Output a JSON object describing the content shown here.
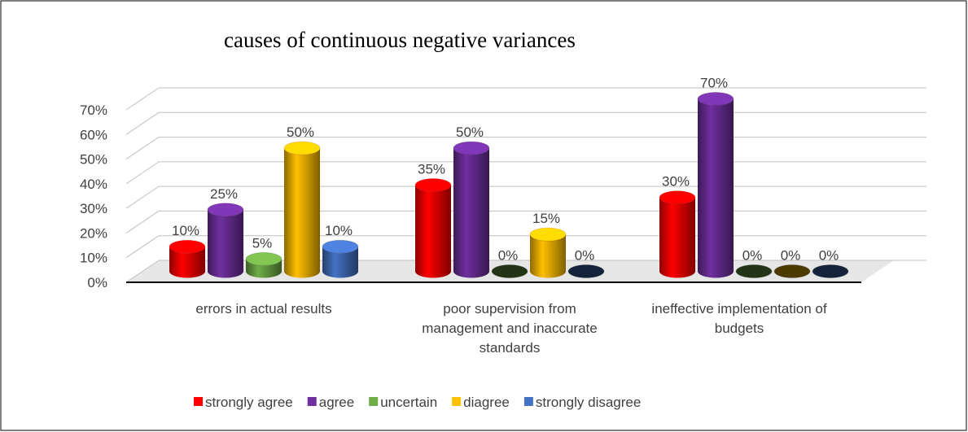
{
  "chart_data": {
    "type": "bar3d",
    "title": "causes of continuous negative variances",
    "categories": [
      "errors in actual results",
      "poor supervision from management and inaccurate standards",
      "ineffective implementation of budgets"
    ],
    "series": [
      {
        "name": "strongly agree",
        "color": "#ff0000",
        "values": [
          10,
          35,
          30
        ],
        "value_labels": [
          "10%",
          "35%",
          "30%"
        ]
      },
      {
        "name": "agree",
        "color": "#7030a0",
        "values": [
          25,
          50,
          70
        ],
        "value_labels": [
          "25%",
          "50%",
          "70%"
        ]
      },
      {
        "name": "uncertain",
        "color": "#70ad47",
        "values": [
          5,
          0,
          0
        ],
        "value_labels": [
          "5%",
          "0%",
          "0%"
        ]
      },
      {
        "name": "diagree",
        "color": "#ffc000",
        "values": [
          50,
          15,
          0
        ],
        "value_labels": [
          "50%",
          "15%",
          "0%"
        ]
      },
      {
        "name": "strongly disagree",
        "color": "#4472c4",
        "values": [
          10,
          0,
          0
        ],
        "value_labels": [
          "10%",
          "0%",
          "0%"
        ]
      }
    ],
    "ylim": [
      0,
      70
    ],
    "yticks": [
      {
        "value": 0,
        "label": "0%"
      },
      {
        "value": 10,
        "label": "10%"
      },
      {
        "value": 20,
        "label": "20%"
      },
      {
        "value": 30,
        "label": "30%"
      },
      {
        "value": 40,
        "label": "40%"
      },
      {
        "value": 50,
        "label": "50%"
      },
      {
        "value": 60,
        "label": "60%"
      },
      {
        "value": 70,
        "label": "70%"
      }
    ],
    "grid": true,
    "legend": "bottom"
  }
}
